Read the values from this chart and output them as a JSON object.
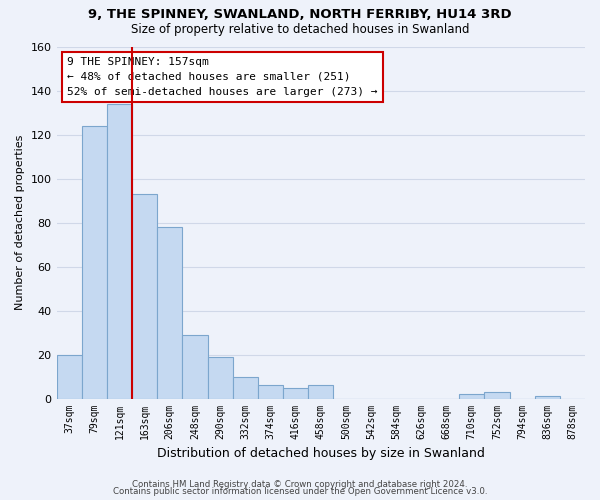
{
  "title": "9, THE SPINNEY, SWANLAND, NORTH FERRIBY, HU14 3RD",
  "subtitle": "Size of property relative to detached houses in Swanland",
  "xlabel": "Distribution of detached houses by size in Swanland",
  "ylabel": "Number of detached properties",
  "bin_labels": [
    "37sqm",
    "79sqm",
    "121sqm",
    "163sqm",
    "206sqm",
    "248sqm",
    "290sqm",
    "332sqm",
    "374sqm",
    "416sqm",
    "458sqm",
    "500sqm",
    "542sqm",
    "584sqm",
    "626sqm",
    "668sqm",
    "710sqm",
    "752sqm",
    "794sqm",
    "836sqm",
    "878sqm"
  ],
  "bar_heights": [
    20,
    124,
    134,
    93,
    78,
    29,
    19,
    10,
    6,
    5,
    6,
    0,
    0,
    0,
    0,
    0,
    2,
    3,
    0,
    1,
    0
  ],
  "bar_color": "#c5d9f1",
  "bar_edge_color": "#7ca6cd",
  "vline_color": "#cc0000",
  "vline_x": 2.5,
  "annotation_title": "9 THE SPINNEY: 157sqm",
  "annotation_line1": "← 48% of detached houses are smaller (251)",
  "annotation_line2": "52% of semi-detached houses are larger (273) →",
  "annotation_box_color": "#ffffff",
  "annotation_box_edge_color": "#cc0000",
  "ylim": [
    0,
    160
  ],
  "yticks": [
    0,
    20,
    40,
    60,
    80,
    100,
    120,
    140,
    160
  ],
  "footer1": "Contains HM Land Registry data © Crown copyright and database right 2024.",
  "footer2": "Contains public sector information licensed under the Open Government Licence v3.0.",
  "background_color": "#eef2fa",
  "grid_color": "#d0d8e8"
}
